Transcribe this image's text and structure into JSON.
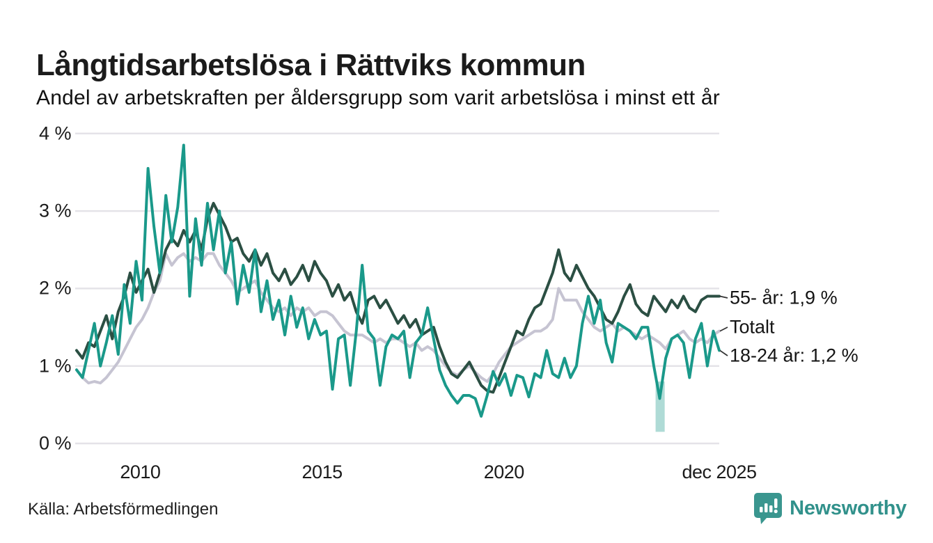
{
  "header": {
    "title": "Långtidsarbetslösa i Rättviks kommun",
    "subtitle": "Andel av arbetskraften per åldersgrupp som varit arbetslösa i minst ett år"
  },
  "footer": {
    "source": "Källa: Arbetsförmedlingen",
    "brand": "Newsworthy"
  },
  "colors": {
    "series_55": "#2b4f43",
    "series_total": "#c6c4d2",
    "series_18_24": "#1a998a",
    "grid": "#e4e3e8",
    "leader": "#333333",
    "brand_teal": "#31918b",
    "band": "rgba(26,153,138,0.35)"
  },
  "chart_data": {
    "type": "line",
    "title": "Långtidsarbetslösa i Rättviks kommun",
    "subtitle": "Andel av arbetskraften per åldersgrupp som varit arbetslösa i minst ett år",
    "xlabel": "",
    "ylabel": "",
    "x_start_year": 2008.25,
    "x_end_year": 2025.92,
    "points_per_series": 109,
    "step_months": 2,
    "ylim": [
      0,
      4
    ],
    "grid": true,
    "legend_position": "right-end-labels",
    "x_ticks": [
      {
        "year": 2010,
        "label": "2010"
      },
      {
        "year": 2015,
        "label": "2015"
      },
      {
        "year": 2020,
        "label": "2020"
      },
      {
        "year": 2025.92,
        "label": "dec 2025"
      }
    ],
    "y_ticks": [
      {
        "value": 4,
        "label": "4 %"
      },
      {
        "value": 3,
        "label": "3 %"
      },
      {
        "value": 2,
        "label": "2 %"
      },
      {
        "value": 1,
        "label": "1 %"
      },
      {
        "value": 0,
        "label": "0 %"
      }
    ],
    "series": [
      {
        "name": "Totalt",
        "end_label": "Totalt",
        "last_value": 1.45,
        "color": "#c6c4d2",
        "values": [
          0.95,
          0.85,
          0.78,
          0.8,
          0.78,
          0.85,
          0.95,
          1.05,
          1.2,
          1.35,
          1.5,
          1.6,
          1.75,
          1.95,
          2.1,
          2.45,
          2.3,
          2.4,
          2.45,
          2.35,
          2.4,
          2.35,
          2.45,
          2.45,
          2.3,
          2.2,
          2.1,
          1.95,
          2.0,
          2.05,
          2.1,
          1.95,
          1.85,
          1.75,
          1.7,
          1.75,
          1.65,
          1.75,
          1.7,
          1.75,
          1.65,
          1.7,
          1.7,
          1.65,
          1.55,
          1.45,
          1.4,
          1.4,
          1.4,
          1.35,
          1.3,
          1.35,
          1.3,
          1.35,
          1.35,
          1.3,
          1.25,
          1.3,
          1.2,
          1.25,
          1.2,
          1.1,
          1.0,
          0.92,
          0.88,
          0.95,
          1.0,
          0.92,
          0.85,
          0.8,
          0.9,
          1.05,
          1.15,
          1.25,
          1.3,
          1.35,
          1.4,
          1.45,
          1.45,
          1.5,
          1.6,
          2.0,
          1.85,
          1.85,
          1.85,
          1.7,
          1.6,
          1.5,
          1.45,
          1.5,
          1.55,
          1.45,
          1.5,
          1.45,
          1.4,
          1.35,
          1.4,
          1.35,
          1.3,
          1.22,
          1.35,
          1.4,
          1.45,
          1.35,
          1.3,
          1.35,
          1.3,
          1.4,
          1.45
        ]
      },
      {
        "name": "55- år",
        "end_label": "55- år: 1,9 %",
        "last_value": 1.9,
        "color": "#2b4f43",
        "values": [
          1.2,
          1.1,
          1.3,
          1.25,
          1.45,
          1.65,
          1.35,
          1.7,
          1.9,
          2.2,
          1.95,
          2.1,
          2.25,
          1.95,
          2.2,
          2.5,
          2.65,
          2.55,
          2.75,
          2.6,
          2.75,
          2.5,
          2.9,
          3.1,
          2.95,
          2.8,
          2.6,
          2.65,
          2.45,
          2.35,
          2.5,
          2.3,
          2.45,
          2.2,
          2.1,
          2.25,
          2.05,
          2.15,
          2.3,
          2.1,
          2.35,
          2.2,
          2.1,
          1.9,
          2.05,
          1.85,
          1.95,
          1.7,
          1.55,
          1.85,
          1.9,
          1.75,
          1.85,
          1.7,
          1.55,
          1.65,
          1.5,
          1.6,
          1.4,
          1.45,
          1.5,
          1.25,
          1.05,
          0.9,
          0.85,
          0.95,
          1.05,
          0.9,
          0.75,
          0.68,
          0.66,
          0.85,
          1.05,
          1.25,
          1.45,
          1.4,
          1.6,
          1.75,
          1.8,
          2.0,
          2.2,
          2.5,
          2.2,
          2.1,
          2.3,
          2.15,
          2.0,
          1.9,
          1.75,
          1.6,
          1.55,
          1.7,
          1.9,
          2.05,
          1.8,
          1.7,
          1.65,
          1.9,
          1.8,
          1.7,
          1.85,
          1.75,
          1.9,
          1.75,
          1.7,
          1.85,
          1.9,
          1.9,
          1.9
        ]
      },
      {
        "name": "18-24 år",
        "end_label": "18-24 år: 1,2 %",
        "last_value": 1.2,
        "color": "#1a998a",
        "values": [
          0.95,
          0.85,
          1.2,
          1.55,
          1.0,
          1.3,
          1.65,
          1.15,
          2.05,
          1.55,
          2.35,
          1.85,
          3.55,
          2.8,
          2.2,
          3.2,
          2.6,
          3.05,
          3.85,
          1.9,
          2.9,
          2.3,
          3.1,
          2.5,
          3.0,
          2.2,
          2.6,
          1.8,
          2.3,
          1.95,
          2.5,
          1.7,
          2.1,
          1.6,
          1.85,
          1.4,
          1.9,
          1.5,
          1.75,
          1.35,
          1.6,
          1.4,
          1.45,
          0.7,
          1.35,
          1.4,
          0.75,
          1.45,
          2.3,
          1.45,
          1.35,
          0.75,
          1.25,
          1.4,
          1.35,
          1.45,
          0.85,
          1.3,
          1.4,
          1.75,
          1.35,
          0.95,
          0.75,
          0.62,
          0.52,
          0.62,
          0.62,
          0.58,
          0.35,
          0.62,
          0.93,
          0.75,
          0.9,
          0.62,
          0.88,
          0.85,
          0.6,
          0.9,
          0.85,
          1.2,
          0.9,
          0.85,
          1.1,
          0.85,
          1.0,
          1.55,
          1.9,
          1.55,
          1.85,
          1.3,
          1.05,
          1.55,
          1.5,
          1.45,
          1.35,
          1.5,
          1.5,
          1.0,
          0.58,
          1.1,
          1.35,
          1.4,
          1.3,
          0.85,
          1.35,
          1.55,
          1.0,
          1.45,
          1.2
        ]
      }
    ],
    "annotation_band": {
      "x_from_year": 2024.17,
      "x_to_year": 2024.42,
      "y_from": 0.15,
      "y_to": 0.8,
      "color": "rgba(26,153,138,0.35)"
    }
  }
}
